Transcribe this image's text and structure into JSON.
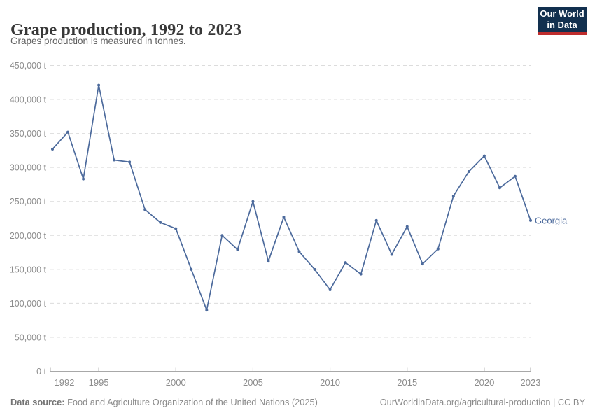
{
  "header": {
    "title": "Grape production, 1992 to 2023",
    "subtitle": "Grapes production is measured in tonnes.",
    "logo": {
      "line1": "Our World",
      "line2": "in Data"
    }
  },
  "chart_data": {
    "type": "line",
    "title": "Grape production, 1992 to 2023",
    "unit": "t",
    "grid": "horizontal-dashed",
    "legend_position": "end-of-line-label",
    "xlim": [
      1992,
      2023
    ],
    "ylim": [
      0,
      450000
    ],
    "x_ticks": [
      1992,
      1995,
      2000,
      2005,
      2010,
      2015,
      2020,
      2023
    ],
    "y_ticks": [
      0,
      50000,
      100000,
      150000,
      200000,
      250000,
      300000,
      350000,
      400000,
      450000
    ],
    "y_tick_suffix": " t",
    "series": [
      {
        "name": "Georgia",
        "color": "#4c6a9c",
        "x": [
          1992,
          1993,
          1994,
          1995,
          1996,
          1997,
          1998,
          1999,
          2000,
          2001,
          2002,
          2003,
          2004,
          2005,
          2006,
          2007,
          2008,
          2009,
          2010,
          2011,
          2012,
          2013,
          2014,
          2015,
          2016,
          2017,
          2018,
          2019,
          2020,
          2021,
          2022,
          2023
        ],
        "values": [
          327000,
          352000,
          283000,
          421000,
          311000,
          308000,
          238000,
          219000,
          210000,
          150000,
          90000,
          200000,
          179000,
          250000,
          162000,
          227000,
          176000,
          150000,
          120000,
          160000,
          143000,
          222000,
          172000,
          213000,
          158000,
          180000,
          258000,
          294000,
          317000,
          270000,
          287000,
          222000
        ]
      }
    ]
  },
  "footer": {
    "source_label": "Data source:",
    "source_text": " Food and Agriculture Organization of the United Nations (2025)",
    "right_text": "OurWorldinData.org/agricultural-production | CC BY"
  },
  "colors": {
    "series": "#4c6a9c",
    "grid": "#dcdcdc",
    "axis": "#a8a8a8",
    "tick_label": "#8c8c8c",
    "logo_bg": "#12304f",
    "logo_accent": "#be2d2d"
  }
}
